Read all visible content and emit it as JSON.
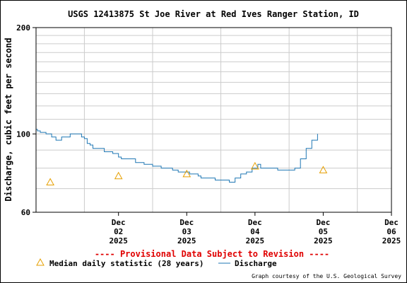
{
  "chart_data": {
    "type": "line",
    "title": "USGS 12413875 St Joe River at Red Ives Ranger Station, ID",
    "ylabel": "Discharge, cubic feet per second",
    "yscale": "log",
    "ylim": [
      60,
      200
    ],
    "yticks": [
      {
        "value": 200,
        "label": "200"
      },
      {
        "value": 100,
        "label": "100"
      },
      {
        "value": 60,
        "label": "60"
      }
    ],
    "xlim": [
      "2025-12-01T07:00",
      "2025-12-06T12:00"
    ],
    "xticks": [
      {
        "date": "2025-12-02",
        "label": [
          "Dec",
          "02",
          "2025"
        ]
      },
      {
        "date": "2025-12-03",
        "label": [
          "Dec",
          "03",
          "2025"
        ]
      },
      {
        "date": "2025-12-04",
        "label": [
          "Dec",
          "04",
          "2025"
        ]
      },
      {
        "date": "2025-12-05",
        "label": [
          "Dec",
          "05",
          "2025"
        ]
      },
      {
        "date": "2025-12-06",
        "label": [
          "Dec",
          "06",
          "2025"
        ]
      }
    ],
    "grid": true,
    "series": [
      {
        "name": "Discharge",
        "color": "#1f77b4",
        "style": "step-line",
        "points": [
          [
            "2025-12-01T07:00",
            103
          ],
          [
            "2025-12-01T07:30",
            102
          ],
          [
            "2025-12-01T08:30",
            101
          ],
          [
            "2025-12-01T10:30",
            100
          ],
          [
            "2025-12-01T12:30",
            98
          ],
          [
            "2025-12-01T14:00",
            96
          ],
          [
            "2025-12-01T16:00",
            98
          ],
          [
            "2025-12-01T19:00",
            100
          ],
          [
            "2025-12-01T23:00",
            98
          ],
          [
            "2025-12-02T00:00",
            97
          ],
          [
            "2025-12-02T01:00",
            94
          ],
          [
            "2025-12-02T02:00",
            93
          ],
          [
            "2025-12-02T03:00",
            91
          ],
          [
            "2025-12-02T07:00",
            89
          ],
          [
            "2025-12-02T10:00",
            88
          ],
          [
            "2025-12-02T12:00",
            86
          ],
          [
            "2025-12-02T13:00",
            85
          ],
          [
            "2025-12-02T18:00",
            83
          ],
          [
            "2025-12-02T21:00",
            82
          ],
          [
            "2025-12-03T00:00",
            81
          ],
          [
            "2025-12-03T03:00",
            80
          ],
          [
            "2025-12-03T07:00",
            79
          ],
          [
            "2025-12-03T09:00",
            78
          ],
          [
            "2025-12-03T13:00",
            77
          ],
          [
            "2025-12-03T16:00",
            76
          ],
          [
            "2025-12-03T17:00",
            75
          ],
          [
            "2025-12-03T22:00",
            74
          ],
          [
            "2025-12-04T00:00",
            74
          ],
          [
            "2025-12-04T03:00",
            73
          ],
          [
            "2025-12-04T05:00",
            75
          ],
          [
            "2025-12-04T07:00",
            77
          ],
          [
            "2025-12-04T09:00",
            78
          ],
          [
            "2025-12-04T11:00",
            80
          ],
          [
            "2025-12-04T13:00",
            82
          ],
          [
            "2025-12-04T14:00",
            80
          ],
          [
            "2025-12-04T17:00",
            80
          ],
          [
            "2025-12-04T20:00",
            79
          ],
          [
            "2025-12-04T21:00",
            79
          ],
          [
            "2025-12-05T00:00",
            79
          ],
          [
            "2025-12-05T02:00",
            80
          ],
          [
            "2025-12-05T04:00",
            85
          ],
          [
            "2025-12-05T06:00",
            91
          ],
          [
            "2025-12-05T08:00",
            96
          ],
          [
            "2025-12-05T10:00",
            100
          ]
        ]
      },
      {
        "name": "Median daily statistic (28 years)",
        "color": "#e69f00",
        "style": "triangle-markers",
        "points": [
          [
            "2025-12-01T12:00",
            73
          ],
          [
            "2025-12-02T12:00",
            76
          ],
          [
            "2025-12-03T12:00",
            77
          ],
          [
            "2025-12-04T12:00",
            81
          ],
          [
            "2025-12-05T12:00",
            79
          ]
        ]
      }
    ],
    "legend_position": "bottom"
  },
  "footer": {
    "provisional_note": "---- Provisional Data Subject to Revision ----",
    "credit": "Graph courtesy of the U.S. Geological Survey"
  }
}
